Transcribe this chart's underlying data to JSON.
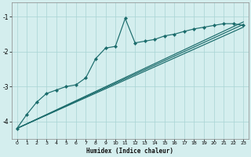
{
  "xlabel": "Humidex (Indice chaleur)",
  "bg_color": "#d4eeee",
  "grid_color": "#a8d4d4",
  "line_color": "#1a6b6b",
  "xlim": [
    -0.5,
    23.5
  ],
  "ylim": [
    -4.5,
    -0.6
  ],
  "xticks": [
    0,
    1,
    2,
    3,
    4,
    5,
    6,
    7,
    8,
    9,
    10,
    11,
    12,
    13,
    14,
    15,
    16,
    17,
    18,
    19,
    20,
    21,
    22,
    23
  ],
  "yticks": [
    -4,
    -3,
    -2,
    -1
  ],
  "main_x": [
    0,
    1,
    2,
    3,
    4,
    5,
    6,
    7,
    8,
    9,
    10,
    11,
    12,
    13,
    14,
    15,
    16,
    17,
    18,
    19,
    20,
    21,
    22,
    23
  ],
  "main_y": [
    -4.2,
    -3.8,
    -3.45,
    -3.2,
    -3.1,
    -3.0,
    -2.95,
    -2.75,
    -2.2,
    -1.9,
    -1.85,
    -1.05,
    -1.75,
    -1.7,
    -1.65,
    -1.55,
    -1.5,
    -1.42,
    -1.35,
    -1.3,
    -1.25,
    -1.2,
    -1.2,
    -1.25
  ],
  "line2_x": [
    0,
    23
  ],
  "line2_y": [
    -4.2,
    -1.15
  ],
  "line3_x": [
    0,
    23
  ],
  "line3_y": [
    -4.2,
    -1.22
  ],
  "line4_x": [
    0,
    23
  ],
  "line4_y": [
    -4.2,
    -1.3
  ]
}
